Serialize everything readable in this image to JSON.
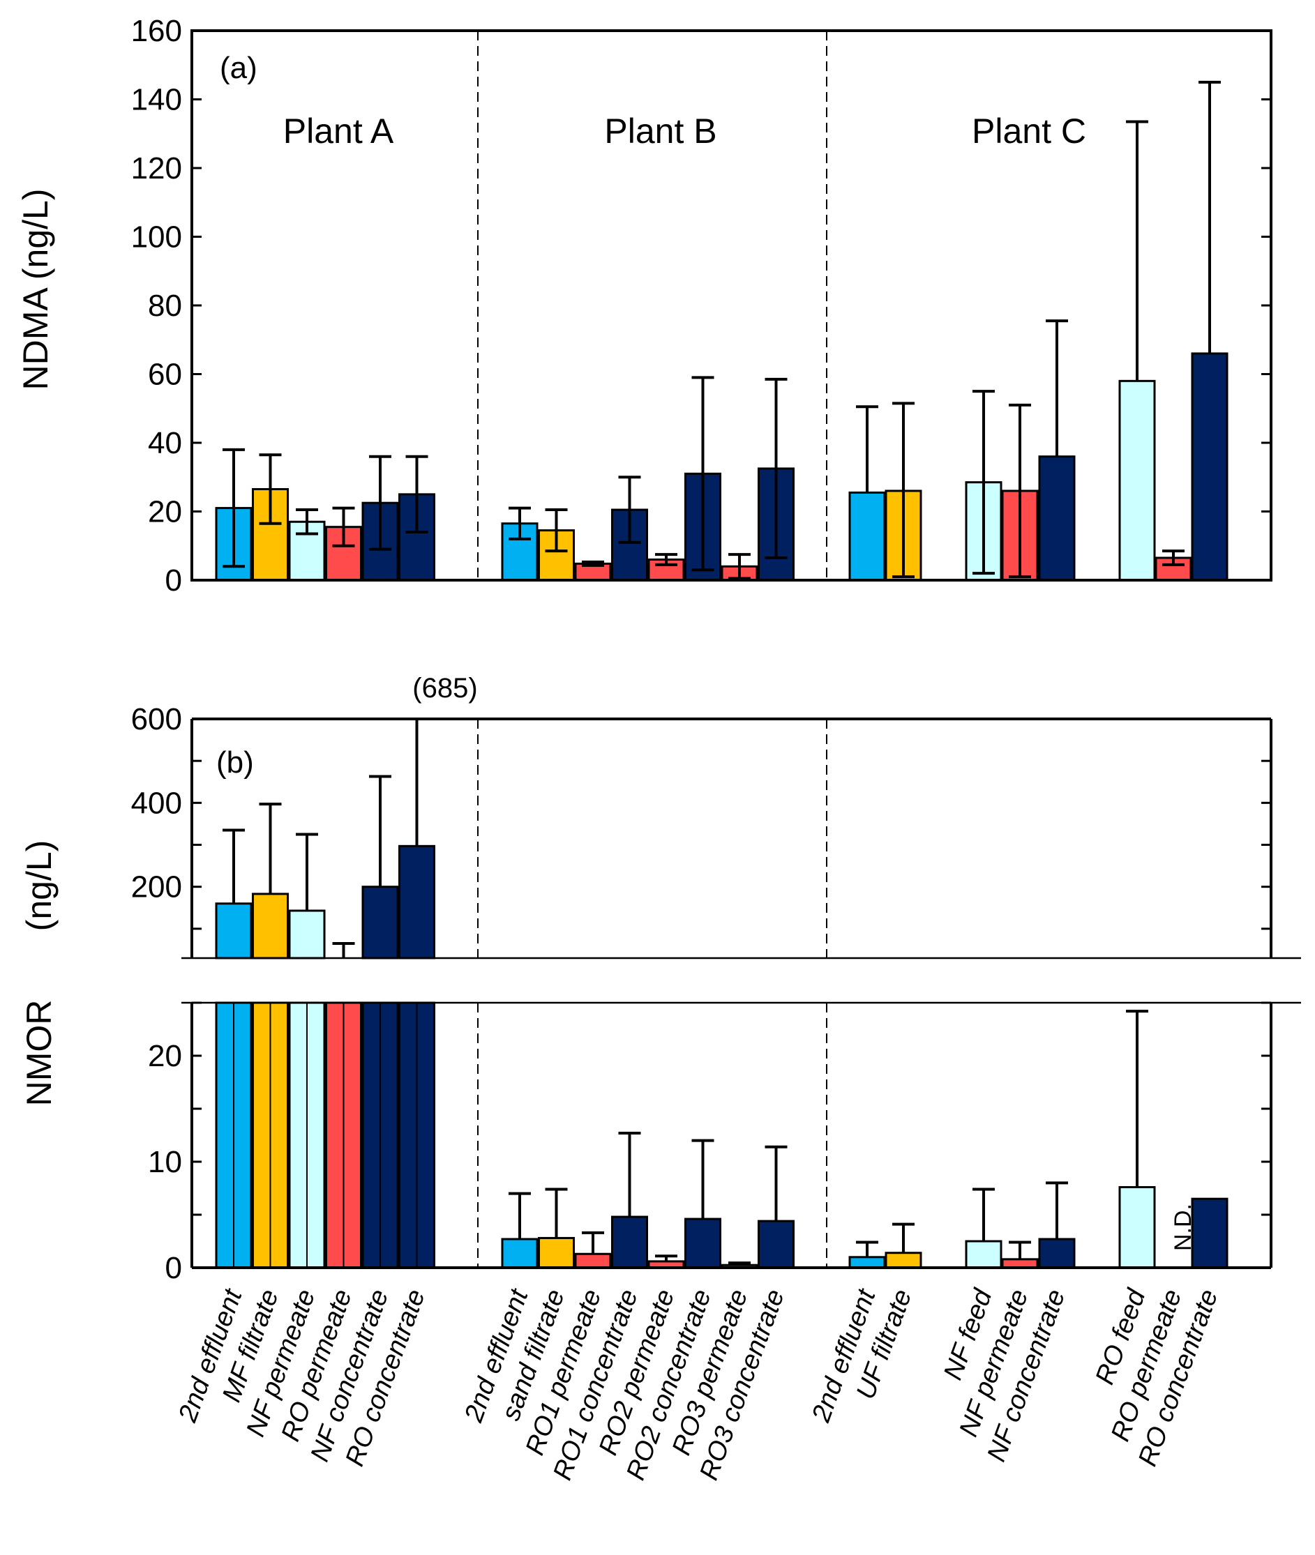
{
  "colors": {
    "2nd effluent": "#00B0F0",
    "MF filtrate": "#FFC000",
    "sand filtrate": "#FFC000",
    "UF filtrate": "#FFC000",
    "feed": "#CCFFFF",
    "NF permeate": "#CCFFFF",
    "permeate": "#FF4B4B",
    "concentrate": "#002060",
    "axis": "#000000"
  },
  "x_labels": [
    "2nd effluent",
    "MF filtrate",
    "NF permeate",
    "RO permeate",
    "NF concentrate",
    "RO concentrate",
    "2nd effluent",
    "sand filtrate",
    "RO1 permeate",
    "RO1 concentrate",
    "RO2 permeate",
    "RO2 concentrate",
    "RO3 permeate",
    "RO3 concentrate",
    "2nd effluent",
    "UF filtrate",
    "NF feed",
    "NF permeate",
    "NF concentrate",
    "RO feed",
    "RO permeate",
    "RO concentrate"
  ],
  "chart_data": [
    {
      "type": "bar",
      "panel_label": "(a)",
      "ylabel": "NDMA (ng/L)",
      "ylim": [
        0,
        160
      ],
      "yticks": [
        "0",
        "20",
        "40",
        "60",
        "80",
        "100",
        "120",
        "140",
        "160"
      ],
      "plants": [
        "Plant A",
        "Plant B",
        "Plant C"
      ],
      "bars": [
        {
          "plant": "Plant A",
          "sample": "2nd effluent",
          "kind": "effluent",
          "value": 21,
          "err_lo": 4,
          "err_hi": 38
        },
        {
          "plant": "Plant A",
          "sample": "MF filtrate",
          "kind": "filtrate",
          "value": 26.5,
          "err_lo": 16.5,
          "err_hi": 36.5
        },
        {
          "plant": "Plant A",
          "sample": "NF permeate",
          "kind": "feed",
          "value": 17,
          "err_lo": 13.5,
          "err_hi": 20.5
        },
        {
          "plant": "Plant A",
          "sample": "RO permeate",
          "kind": "permeate",
          "value": 15.5,
          "err_lo": 10,
          "err_hi": 21
        },
        {
          "plant": "Plant A",
          "sample": "NF concentrate",
          "kind": "concentrate",
          "value": 22.5,
          "err_lo": 9,
          "err_hi": 36
        },
        {
          "plant": "Plant A",
          "sample": "RO concentrate",
          "kind": "concentrate",
          "value": 25,
          "err_lo": 14,
          "err_hi": 36
        },
        {
          "plant": "Plant B",
          "sample": "2nd effluent",
          "kind": "effluent",
          "value": 16.5,
          "err_lo": 12,
          "err_hi": 21
        },
        {
          "plant": "Plant B",
          "sample": "sand filtrate",
          "kind": "filtrate",
          "value": 14.5,
          "err_lo": 8.5,
          "err_hi": 20.5
        },
        {
          "plant": "Plant B",
          "sample": "RO1 permeate",
          "kind": "permeate",
          "value": 4.8,
          "err_lo": 4.3,
          "err_hi": 5.3
        },
        {
          "plant": "Plant B",
          "sample": "RO1 concentrate",
          "kind": "concentrate",
          "value": 20.5,
          "err_lo": 11,
          "err_hi": 30
        },
        {
          "plant": "Plant B",
          "sample": "RO2 permeate",
          "kind": "permeate",
          "value": 6,
          "err_lo": 4.5,
          "err_hi": 7.5
        },
        {
          "plant": "Plant B",
          "sample": "RO2 concentrate",
          "kind": "concentrate",
          "value": 31,
          "err_lo": 3,
          "err_hi": 59
        },
        {
          "plant": "Plant B",
          "sample": "RO3 permeate",
          "kind": "permeate",
          "value": 4,
          "err_lo": 0.5,
          "err_hi": 7.5
        },
        {
          "plant": "Plant B",
          "sample": "RO3 concentrate",
          "kind": "concentrate",
          "value": 32.5,
          "err_lo": 6.5,
          "err_hi": 58.5
        },
        {
          "plant": "Plant C",
          "sample": "2nd effluent",
          "kind": "effluent",
          "value": 25.5,
          "err_lo": null,
          "err_hi": 50.5
        },
        {
          "plant": "Plant C",
          "sample": "UF filtrate",
          "kind": "filtrate",
          "value": 26,
          "err_lo": 1,
          "err_hi": 51.5
        },
        {
          "plant": "Plant C",
          "sample": "NF feed",
          "kind": "feed",
          "value": 28.5,
          "err_lo": 2,
          "err_hi": 55
        },
        {
          "plant": "Plant C",
          "sample": "NF permeate",
          "kind": "permeate",
          "value": 26,
          "err_lo": 1,
          "err_hi": 51
        },
        {
          "plant": "Plant C",
          "sample": "NF concentrate",
          "kind": "concentrate",
          "value": 36,
          "err_lo": null,
          "err_hi": 75.5
        },
        {
          "plant": "Plant C",
          "sample": "RO feed",
          "kind": "feed",
          "value": 58,
          "err_lo": null,
          "err_hi": 133.5
        },
        {
          "plant": "Plant C",
          "sample": "RO permeate",
          "kind": "permeate",
          "value": 6.5,
          "err_lo": 4.5,
          "err_hi": 8.5
        },
        {
          "plant": "Plant C",
          "sample": "RO concentrate",
          "kind": "concentrate",
          "value": 66,
          "err_lo": null,
          "err_hi": 145
        }
      ]
    },
    {
      "type": "bar",
      "panel_label": "(b)",
      "ylabel": "NMOR (ng/L)",
      "ylabel_parts": [
        "NMOR",
        "(ng/L)"
      ],
      "axis_break": [
        25,
        30
      ],
      "ylim_lower": [
        0,
        25
      ],
      "ylim_upper": [
        30,
        600
      ],
      "yticks_lower": [
        "0",
        "10",
        "20"
      ],
      "yticks_upper": [
        "200",
        "400",
        "600"
      ],
      "annotations": [
        "(685)",
        "N.D."
      ],
      "bars": [
        {
          "plant": "Plant A",
          "sample": "2nd effluent",
          "kind": "effluent",
          "value": 160,
          "err_lo": null,
          "err_hi": 335
        },
        {
          "plant": "Plant A",
          "sample": "MF filtrate",
          "kind": "filtrate",
          "value": 183,
          "err_lo": null,
          "err_hi": 397
        },
        {
          "plant": "Plant A",
          "sample": "NF permeate",
          "kind": "feed",
          "value": 143,
          "err_lo": null,
          "err_hi": 325
        },
        {
          "plant": "Plant A",
          "sample": "RO permeate",
          "kind": "permeate",
          "value": 30,
          "err_lo": null,
          "err_hi": 65
        },
        {
          "plant": "Plant A",
          "sample": "NF concentrate",
          "kind": "concentrate",
          "value": 200,
          "err_lo": null,
          "err_hi": 463
        },
        {
          "plant": "Plant A",
          "sample": "RO concentrate",
          "kind": "concentrate",
          "value": 297,
          "err_lo": null,
          "err_hi": 685
        },
        {
          "plant": "Plant B",
          "sample": "2nd effluent",
          "kind": "effluent",
          "value": 2.7,
          "err_lo": null,
          "err_hi": 7
        },
        {
          "plant": "Plant B",
          "sample": "sand filtrate",
          "kind": "filtrate",
          "value": 2.8,
          "err_lo": null,
          "err_hi": 7.4
        },
        {
          "plant": "Plant B",
          "sample": "RO1 permeate",
          "kind": "permeate",
          "value": 1.3,
          "err_lo": null,
          "err_hi": 3.3
        },
        {
          "plant": "Plant B",
          "sample": "RO1 concentrate",
          "kind": "concentrate",
          "value": 4.8,
          "err_lo": null,
          "err_hi": 12.7
        },
        {
          "plant": "Plant B",
          "sample": "RO2 permeate",
          "kind": "permeate",
          "value": 0.6,
          "err_lo": null,
          "err_hi": 1.1
        },
        {
          "plant": "Plant B",
          "sample": "RO2 concentrate",
          "kind": "concentrate",
          "value": 4.6,
          "err_lo": null,
          "err_hi": 12
        },
        {
          "plant": "Plant B",
          "sample": "RO3 permeate",
          "kind": "permeate",
          "value": 0.25,
          "err_lo": null,
          "err_hi": 0.45
        },
        {
          "plant": "Plant B",
          "sample": "RO3 concentrate",
          "kind": "concentrate",
          "value": 4.4,
          "err_lo": null,
          "err_hi": 11.4
        },
        {
          "plant": "Plant C",
          "sample": "2nd effluent",
          "kind": "effluent",
          "value": 1,
          "err_lo": null,
          "err_hi": 2.4
        },
        {
          "plant": "Plant C",
          "sample": "UF filtrate",
          "kind": "filtrate",
          "value": 1.4,
          "err_lo": null,
          "err_hi": 4.1
        },
        {
          "plant": "Plant C",
          "sample": "NF feed",
          "kind": "feed",
          "value": 2.5,
          "err_lo": null,
          "err_hi": 7.4
        },
        {
          "plant": "Plant C",
          "sample": "NF permeate",
          "kind": "permeate",
          "value": 0.8,
          "err_lo": null,
          "err_hi": 2.4
        },
        {
          "plant": "Plant C",
          "sample": "NF concentrate",
          "kind": "concentrate",
          "value": 2.7,
          "err_lo": null,
          "err_hi": 8
        },
        {
          "plant": "Plant C",
          "sample": "RO feed",
          "kind": "feed",
          "value": 7.6,
          "err_lo": null,
          "err_hi": 24.2
        },
        {
          "plant": "Plant C",
          "sample": "RO permeate",
          "kind": "permeate",
          "value": null,
          "err_lo": null,
          "err_hi": null
        },
        {
          "plant": "Plant C",
          "sample": "RO concentrate",
          "kind": "concentrate",
          "value": 6.5,
          "err_lo": null,
          "err_hi": null
        }
      ]
    }
  ]
}
